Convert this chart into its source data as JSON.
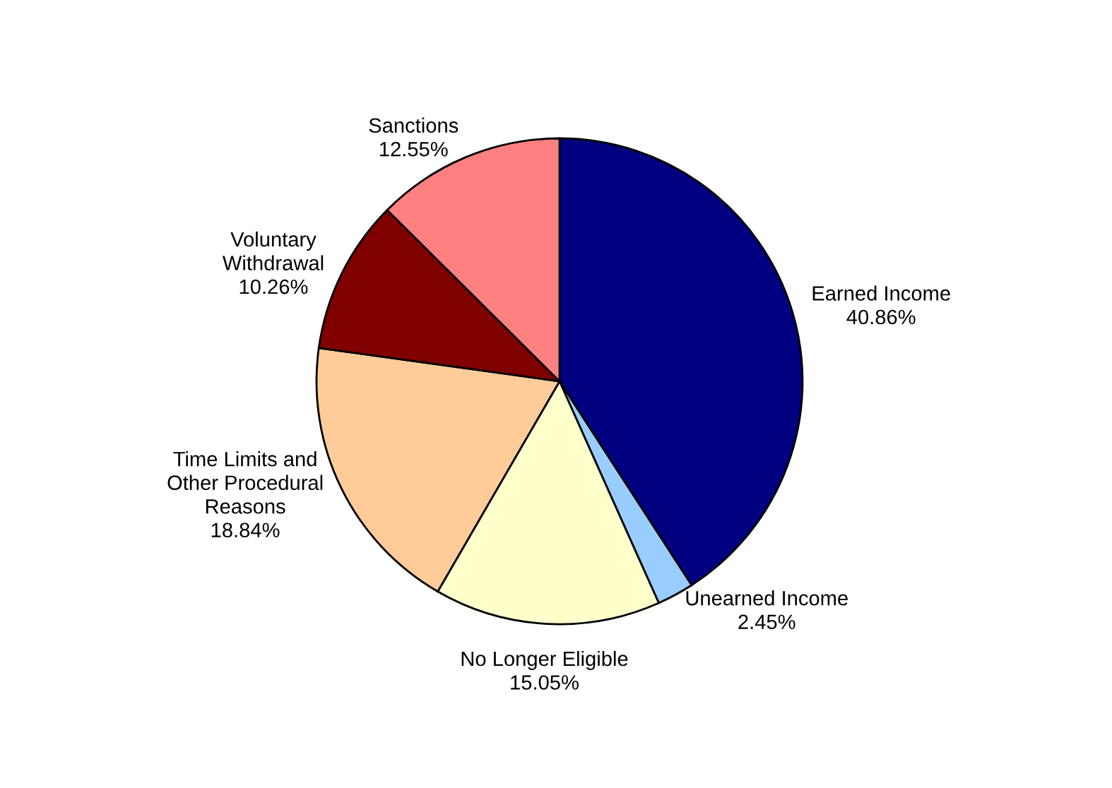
{
  "chart_data": {
    "type": "pie",
    "categories": [
      "Earned Income",
      "Unearned Income",
      "No Longer Eligible",
      "Time Limits and\nOther Procedural\nReasons",
      "Voluntary\nWithdrawal",
      "Sanctions"
    ],
    "values": [
      40.86,
      2.45,
      15.05,
      18.84,
      10.26,
      12.55
    ],
    "value_labels": [
      "40.86%",
      "2.45%",
      "15.05%",
      "18.84%",
      "10.26%",
      "12.55%"
    ],
    "colors": [
      "#000080",
      "#99ccff",
      "#ffffcc",
      "#ffcc99",
      "#800000",
      "#ff8080"
    ],
    "legend": false
  }
}
